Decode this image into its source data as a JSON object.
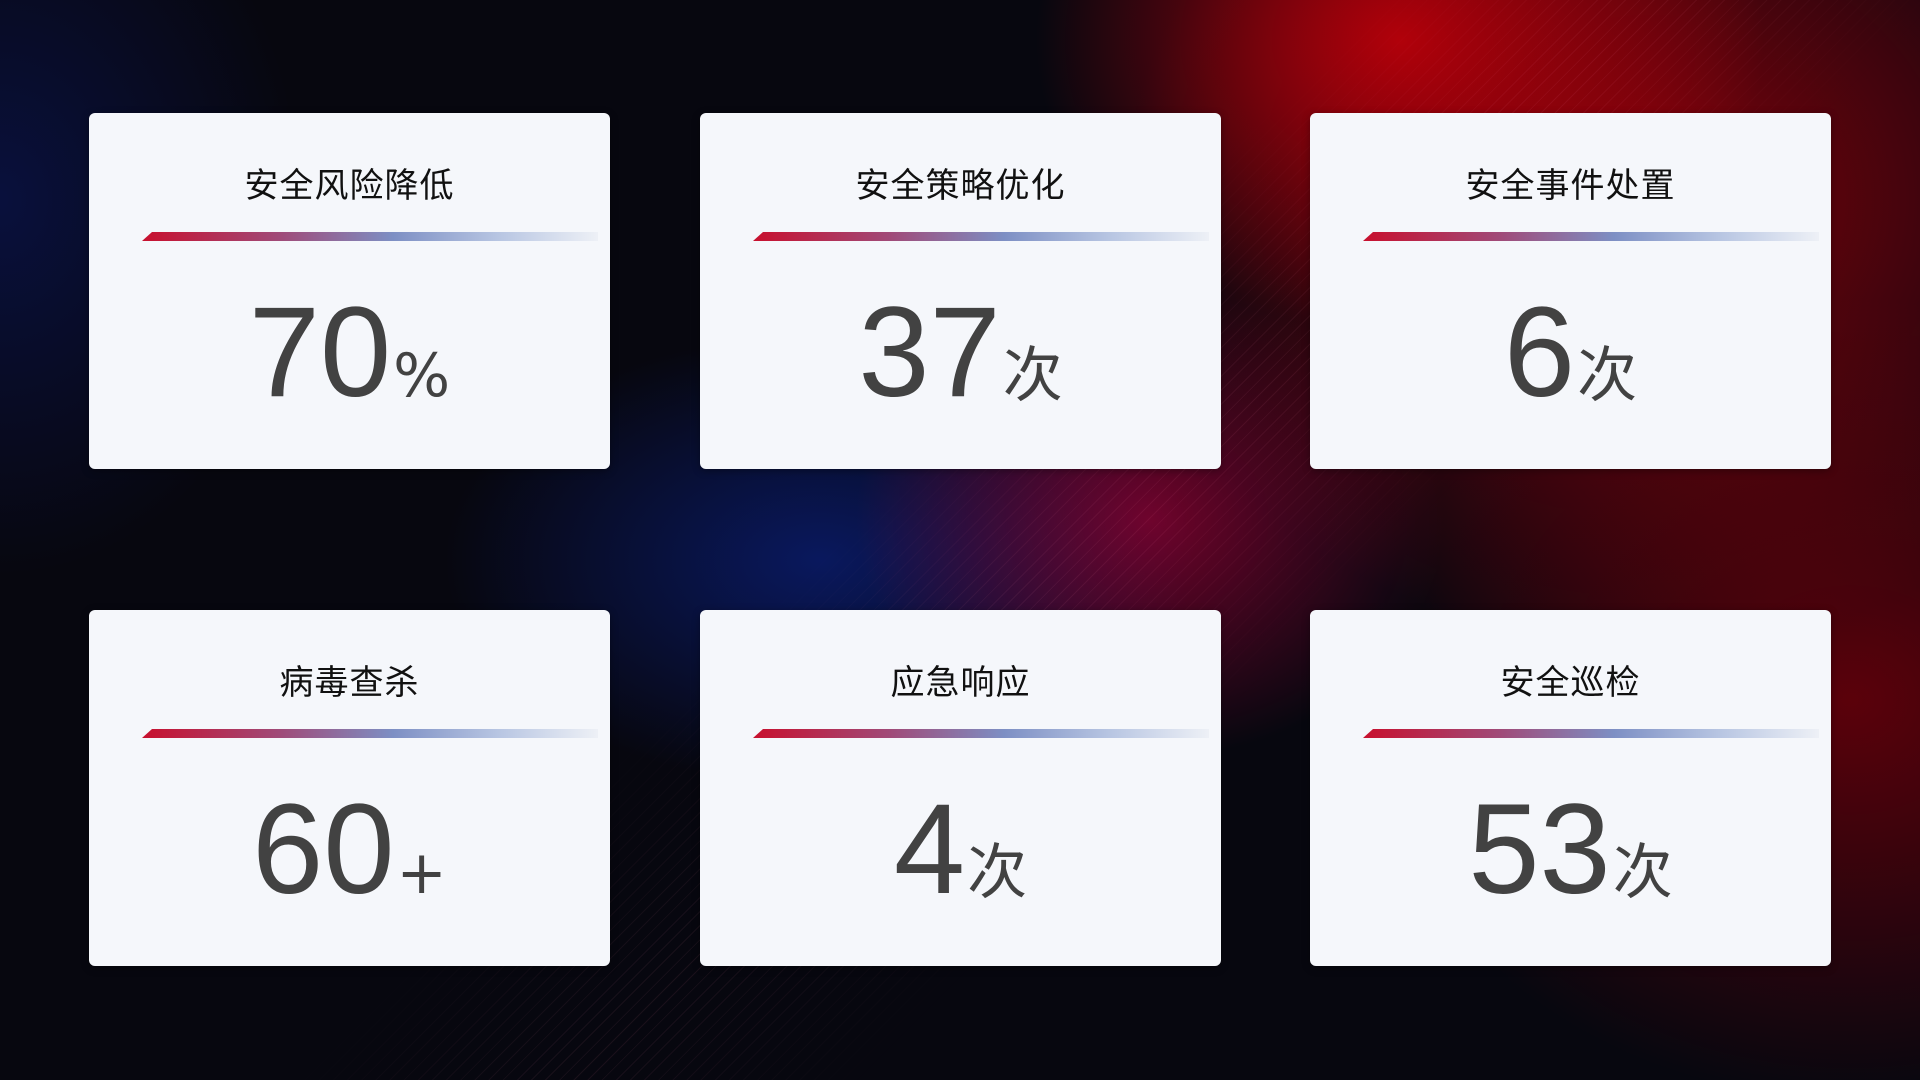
{
  "cards": [
    {
      "title": "安全风险降低",
      "value": "70",
      "unit": "%"
    },
    {
      "title": "安全策略优化",
      "value": "37",
      "unit": "次"
    },
    {
      "title": "安全事件处置",
      "value": "6",
      "unit": "次"
    },
    {
      "title": "病毒查杀",
      "value": "60",
      "unit": "+"
    },
    {
      "title": "应急响应",
      "value": "4",
      "unit": "次"
    },
    {
      "title": "安全巡检",
      "value": "53",
      "unit": "次"
    }
  ],
  "colors": {
    "accent_red": "#c8102e",
    "accent_blue": "#7d8fc4",
    "card_bg": "#f5f7fb",
    "value_text": "#424242"
  }
}
